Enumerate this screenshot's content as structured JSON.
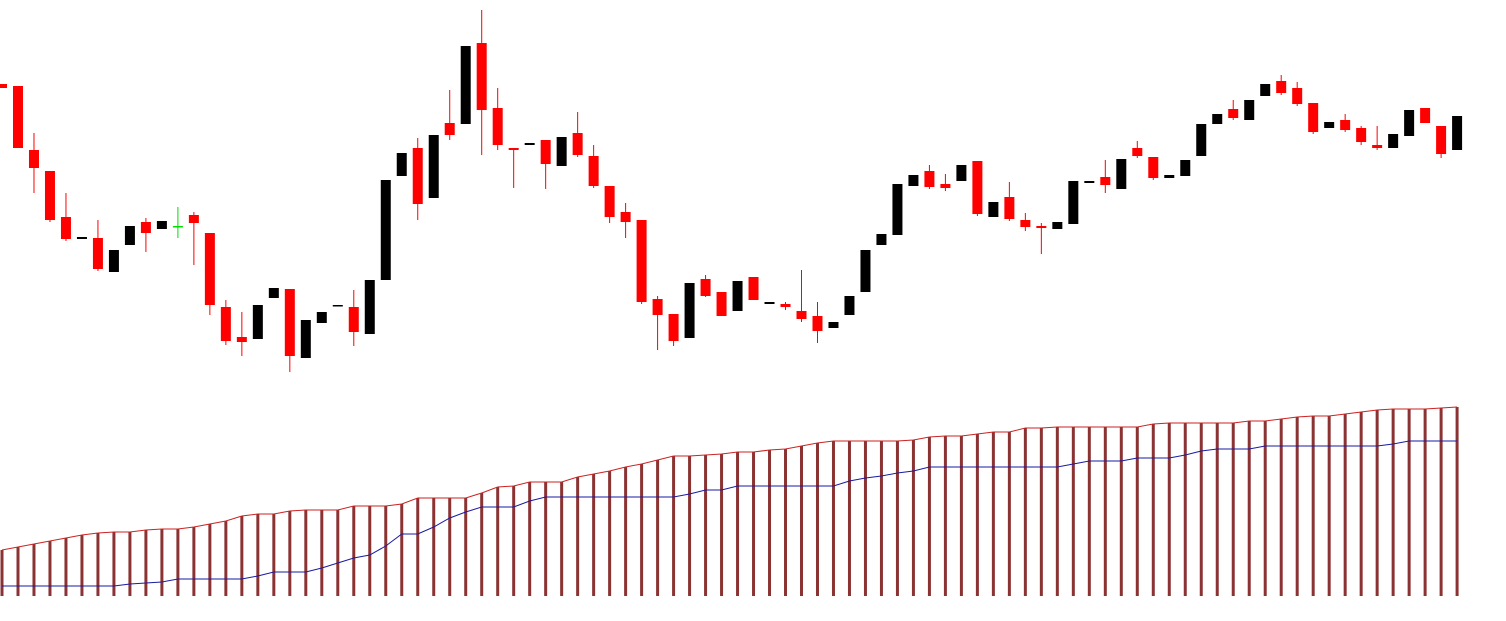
{
  "chart_data": [
    {
      "type": "candlestick",
      "open": [
        536,
        534,
        470,
        449,
        403,
        381,
        382,
        348,
        375,
        398,
        391,
        394,
        405,
        387,
        313,
        283,
        281,
        322,
        331,
        262,
        297,
        314,
        313,
        286,
        340,
        444,
        472,
        422,
        497,
        496,
        577,
        512,
        472,
        475,
        480,
        454,
        487,
        464,
        434,
        408,
        400,
        321,
        306,
        282,
        341,
        328,
        309,
        343,
        316,
        316,
        309,
        304,
        292,
        305,
        328,
        375,
        385,
        434,
        449,
        436,
        439,
        459,
        403,
        423,
        400,
        394,
        391,
        396,
        437,
        443,
        431,
        472,
        463,
        442,
        444,
        464,
        496,
        511,
        500,
        524,
        539,
        532,
        517,
        492,
        500,
        492,
        475,
        472,
        484,
        512,
        494,
        470
      ],
      "high": [
        536,
        534,
        487,
        449,
        427,
        383,
        400,
        370,
        394,
        402,
        399,
        413,
        408,
        387,
        320,
        308,
        315,
        332,
        331,
        300,
        308,
        315,
        330,
        340,
        440,
        467,
        482,
        485,
        530,
        574,
        610,
        532,
        472,
        477,
        480,
        483,
        508,
        475,
        434,
        417,
        400,
        324,
        306,
        337,
        345,
        328,
        339,
        343,
        318,
        318,
        350,
        318,
        298,
        324,
        370,
        386,
        436,
        445,
        455,
        446,
        455,
        459,
        418,
        438,
        407,
        397,
        398,
        439,
        439,
        460,
        461,
        479,
        463,
        445,
        460,
        496,
        506,
        520,
        520,
        536,
        545,
        538,
        517,
        498,
        506,
        494,
        494,
        486,
        510,
        512,
        494,
        504
      ],
      "low": [
        532,
        472,
        427,
        398,
        379,
        381,
        349,
        348,
        375,
        368,
        391,
        382,
        355,
        305,
        275,
        264,
        281,
        322,
        248,
        262,
        297,
        314,
        274,
        286,
        340,
        444,
        400,
        422,
        480,
        496,
        465,
        470,
        432,
        475,
        431,
        454,
        463,
        432,
        397,
        382,
        316,
        270,
        274,
        282,
        323,
        304,
        309,
        320,
        316,
        310,
        298,
        277,
        292,
        305,
        328,
        375,
        385,
        434,
        431,
        429,
        439,
        404,
        403,
        399,
        389,
        366,
        391,
        396,
        437,
        427,
        431,
        462,
        440,
        442,
        444,
        464,
        496,
        500,
        500,
        524,
        525,
        514,
        486,
        492,
        488,
        475,
        470,
        472,
        484,
        497,
        462,
        470
      ],
      "close": [
        532,
        472,
        452,
        400,
        381,
        383,
        351,
        370,
        394,
        387,
        399,
        394,
        397,
        315,
        279,
        278,
        315,
        332,
        264,
        300,
        308,
        315,
        288,
        340,
        440,
        467,
        416,
        485,
        485,
        574,
        510,
        475,
        470,
        477,
        456,
        483,
        465,
        434,
        403,
        398,
        318,
        305,
        279,
        337,
        324,
        304,
        339,
        320,
        318,
        313,
        301,
        289,
        298,
        324,
        370,
        386,
        436,
        445,
        433,
        432,
        455,
        406,
        418,
        401,
        393,
        392,
        398,
        439,
        439,
        435,
        461,
        464,
        442,
        445,
        460,
        496,
        506,
        502,
        520,
        536,
        527,
        516,
        488,
        498,
        490,
        478,
        472,
        486,
        510,
        497,
        466,
        504
      ],
      "up_color": "#000000",
      "down_color": "#ff0000",
      "doji_color": "#00dd00",
      "ylim": [
        240,
        620
      ]
    },
    {
      "type": "bar",
      "series": [
        {
          "type": "bar",
          "color": "#8b3333",
          "outline_color": "#cc2222",
          "values": [
            46,
            49,
            52,
            55,
            58,
            61,
            63,
            64,
            64,
            66,
            67,
            67,
            69,
            72,
            75,
            80,
            82,
            82,
            85,
            86,
            86,
            86,
            90,
            90,
            90,
            92,
            98,
            98,
            98,
            98,
            103,
            109,
            110,
            114,
            114,
            114,
            119,
            122,
            125,
            129,
            132,
            136,
            140,
            140,
            141,
            142,
            144,
            144,
            146,
            147,
            150,
            153,
            155,
            155,
            155,
            155,
            155,
            156,
            159,
            160,
            160,
            162,
            164,
            164,
            168,
            168,
            169,
            169,
            169,
            169,
            169,
            169,
            172,
            173,
            173,
            173,
            173,
            173,
            175,
            175,
            177,
            179,
            180,
            180,
            182,
            184,
            186,
            187,
            187,
            187,
            188,
            189
          ]
        },
        {
          "type": "line",
          "color": "#1a1aa0",
          "values": [
            10,
            10,
            10,
            10,
            10,
            10,
            10,
            10,
            12,
            13,
            14,
            17,
            17,
            17,
            17,
            17,
            20,
            24,
            24,
            24,
            28,
            33,
            38,
            41,
            50,
            62,
            62,
            69,
            78,
            84,
            89,
            89,
            89,
            95,
            99,
            99,
            99,
            99,
            99,
            99,
            99,
            99,
            99,
            102,
            106,
            106,
            110,
            110,
            110,
            110,
            110,
            110,
            110,
            115,
            118,
            120,
            123,
            125,
            129,
            129,
            129,
            129,
            129,
            129,
            129,
            129,
            129,
            132,
            135,
            135,
            135,
            138,
            138,
            138,
            141,
            145,
            147,
            147,
            147,
            150,
            150,
            150,
            150,
            150,
            150,
            150,
            150,
            152,
            155,
            155,
            155,
            155
          ]
        }
      ],
      "ylim": [
        0,
        200
      ]
    }
  ]
}
